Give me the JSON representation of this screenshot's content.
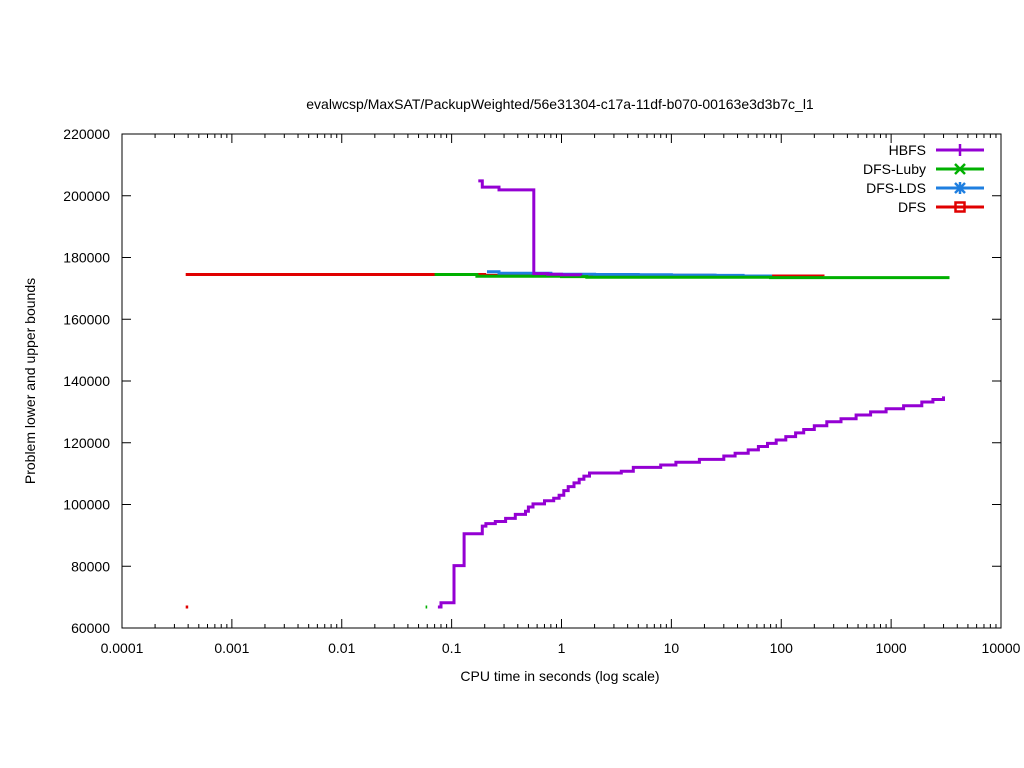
{
  "chart_data": {
    "type": "line",
    "title": "evalwcsp/MaxSAT/PackupWeighted/56e31304-c17a-11df-b070-00163e3d3b7c_l1",
    "xlabel": "CPU time in seconds (log scale)",
    "ylabel": "Problem lower and upper bounds",
    "x_scale": "log",
    "xlim": [
      0.0001,
      10000
    ],
    "ylim": [
      60000,
      220000
    ],
    "x_ticks": [
      0.0001,
      0.001,
      0.01,
      0.1,
      1,
      10,
      100,
      1000,
      10000
    ],
    "x_tick_labels": [
      "0.0001",
      "0.001",
      "0.01",
      "0.1",
      "1",
      "10",
      "100",
      "1000",
      "10000"
    ],
    "y_ticks": [
      60000,
      80000,
      100000,
      120000,
      140000,
      160000,
      180000,
      200000,
      220000
    ],
    "y_tick_labels": [
      "60000",
      "80000",
      "100000",
      "120000",
      "140000",
      "160000",
      "180000",
      "200000",
      "220000"
    ],
    "grid": false,
    "legend_position": "top-right",
    "series": [
      {
        "name": "HBFS",
        "color": "#9400d3",
        "marker": "plus",
        "upper": [
          [
            0.175,
            204800
          ],
          [
            0.19,
            202800
          ],
          [
            0.27,
            201900
          ],
          [
            0.56,
            201900
          ],
          [
            0.56,
            174800
          ],
          [
            0.75,
            174600
          ],
          [
            1.0,
            174400
          ],
          [
            1.5,
            174200
          ]
        ],
        "lower": [
          [
            0.075,
            66800
          ],
          [
            0.08,
            68200
          ],
          [
            0.105,
            68200
          ],
          [
            0.105,
            80200
          ],
          [
            0.13,
            80200
          ],
          [
            0.13,
            90500
          ],
          [
            0.175,
            90500
          ],
          [
            0.19,
            93000
          ],
          [
            0.205,
            93800
          ],
          [
            0.25,
            94500
          ],
          [
            0.31,
            95500
          ],
          [
            0.38,
            96800
          ],
          [
            0.47,
            97800
          ],
          [
            0.5,
            99200
          ],
          [
            0.55,
            100200
          ],
          [
            0.7,
            101200
          ],
          [
            0.85,
            102000
          ],
          [
            0.95,
            103000
          ],
          [
            1.05,
            104500
          ],
          [
            1.15,
            105800
          ],
          [
            1.3,
            107000
          ],
          [
            1.45,
            108200
          ],
          [
            1.6,
            109200
          ],
          [
            1.8,
            110200
          ],
          [
            3.5,
            110800
          ],
          [
            4.5,
            112000
          ],
          [
            8.0,
            112800
          ],
          [
            11.0,
            113700
          ],
          [
            18.0,
            114600
          ],
          [
            30.0,
            115700
          ],
          [
            38.0,
            116600
          ],
          [
            50.0,
            117700
          ],
          [
            62.0,
            118800
          ],
          [
            75.0,
            119800
          ],
          [
            90.0,
            120900
          ],
          [
            110.0,
            122000
          ],
          [
            135.0,
            123200
          ],
          [
            160.0,
            124300
          ],
          [
            200.0,
            125500
          ],
          [
            260.0,
            126800
          ],
          [
            350.0,
            127800
          ],
          [
            480.0,
            129000
          ],
          [
            650.0,
            130000
          ],
          [
            900.0,
            131000
          ],
          [
            1300.0,
            132000
          ],
          [
            1900.0,
            133200
          ],
          [
            2400.0,
            134000
          ],
          [
            3000.0,
            135000
          ]
        ]
      },
      {
        "name": "DFS-Luby",
        "color": "#00b000",
        "marker": "x",
        "upper": [
          [
            0.07,
            174500
          ],
          [
            0.17,
            174500
          ],
          [
            0.17,
            173900
          ],
          [
            0.5,
            173900
          ],
          [
            1.0,
            173800
          ],
          [
            1.7,
            173600
          ],
          [
            20.0,
            173600
          ],
          [
            80.0,
            173500
          ],
          [
            3400.0,
            173500
          ]
        ],
        "lower": [
          [
            0.058,
            66800
          ],
          [
            0.06,
            66800
          ]
        ]
      },
      {
        "name": "DFS-LDS",
        "color": "#1f7fe0",
        "marker": "star",
        "upper": [
          [
            0.21,
            175400
          ],
          [
            0.27,
            175400
          ],
          [
            0.27,
            174900
          ],
          [
            0.8,
            174900
          ],
          [
            0.8,
            174600
          ],
          [
            2.0,
            174500
          ],
          [
            5.0,
            174400
          ],
          [
            10.0,
            174300
          ],
          [
            25.0,
            174200
          ],
          [
            45.0,
            174000
          ],
          [
            80.0,
            173800
          ]
        ],
        "lower": []
      },
      {
        "name": "DFS",
        "color": "#e00000",
        "marker": "square",
        "upper": [
          [
            0.00038,
            174500
          ],
          [
            0.07,
            174500
          ],
          [
            0.17,
            174500
          ],
          [
            0.2,
            174200
          ],
          [
            1.0,
            174300
          ],
          [
            5.0,
            174200
          ],
          [
            17.0,
            174200
          ],
          [
            24.0,
            174000
          ],
          [
            240.0,
            173900
          ]
        ],
        "lower": [
          [
            0.00038,
            66800
          ],
          [
            0.0004,
            66800
          ]
        ]
      }
    ]
  }
}
